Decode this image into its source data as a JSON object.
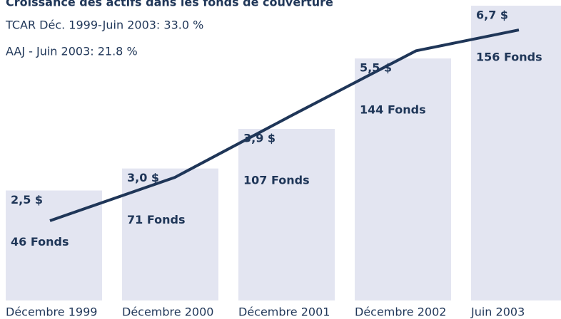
{
  "chart_data": {
    "type": "bar-line",
    "title": "Croissance des actifs dans les fonds de couverture",
    "annotations": [
      "TCAR Déc. 1999-Juin 2003:  33.0 %",
      "AAJ - Juin 2003:  21.8 %"
    ],
    "categories": [
      "Décembre 1999",
      "Décembre 2000",
      "Décembre 2001",
      "Décembre 2002",
      "Juin 2003"
    ],
    "series": [
      {
        "type": "bar",
        "color": "#e3e5f1",
        "values": [
          2.5,
          3.0,
          3.9,
          5.5,
          6.7
        ],
        "value_labels": [
          "2,5 $",
          "3,0 $",
          "3,9 $",
          "5,5 $",
          "6,7 $"
        ]
      },
      {
        "type": "line",
        "axis": "y2",
        "color": "#1f3658",
        "values": [
          46,
          71,
          107,
          144,
          156
        ],
        "value_labels": [
          "46 Fonds",
          "71 Fonds",
          "107 Fonds",
          "144 Fonds",
          "156 Fonds"
        ]
      }
    ],
    "ylim": [
      0,
      6.7
    ],
    "y2lim": [
      0,
      170
    ]
  }
}
